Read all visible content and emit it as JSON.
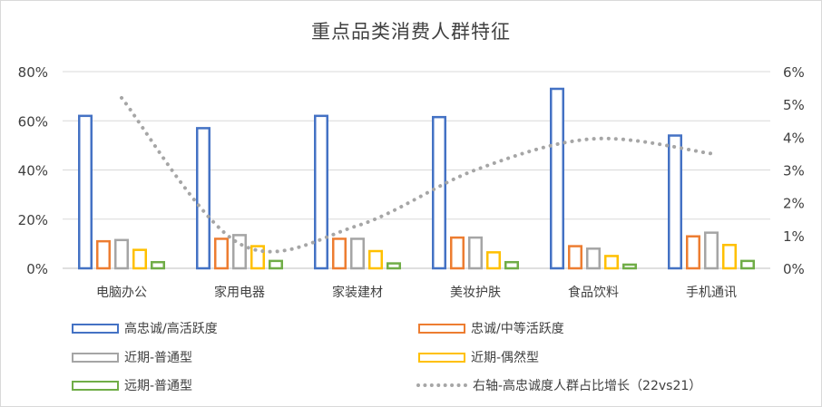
{
  "chart_data": {
    "type": "bar",
    "title": "重点品类消费人群特征",
    "categories": [
      "电脑办公",
      "家用电器",
      "家装建材",
      "美妆护肤",
      "食品饮料",
      "手机通讯"
    ],
    "series": [
      {
        "name": "高忠诚/高活跃度",
        "color": "#4472c4",
        "axis": "left",
        "values": [
          62,
          57,
          62,
          61.5,
          73,
          54
        ]
      },
      {
        "name": "忠诚/中等活跃度",
        "color": "#ed7d31",
        "axis": "left",
        "values": [
          11,
          12,
          12,
          12.5,
          9,
          13
        ]
      },
      {
        "name": "近期-普通型",
        "color": "#a5a5a5",
        "axis": "left",
        "values": [
          11.5,
          13.5,
          12,
          12.5,
          8,
          14.5
        ]
      },
      {
        "name": "近期-偶然型",
        "color": "#ffc000",
        "axis": "left",
        "values": [
          7.5,
          9,
          7,
          6.5,
          5,
          9.5
        ]
      },
      {
        "name": "远期-普通型",
        "color": "#70ad47",
        "axis": "left",
        "values": [
          2.5,
          3,
          2,
          2.5,
          1.5,
          3
        ]
      }
    ],
    "line_series": {
      "name": "右轴-高忠诚度人群占比增长（22vs21）",
      "color": "#a6a6a6",
      "axis": "right",
      "values": [
        5.2,
        0.75,
        1.3,
        3.0,
        3.95,
        3.5
      ]
    },
    "y_left": {
      "min": 0,
      "max": 80,
      "ticks": [
        "0%",
        "20%",
        "40%",
        "60%",
        "80%"
      ]
    },
    "y_right": {
      "min": 0,
      "max": 6,
      "ticks": [
        "0%",
        "1%",
        "2%",
        "3%",
        "4%",
        "5%",
        "6%"
      ]
    },
    "grid": true,
    "legend_position": "bottom"
  }
}
